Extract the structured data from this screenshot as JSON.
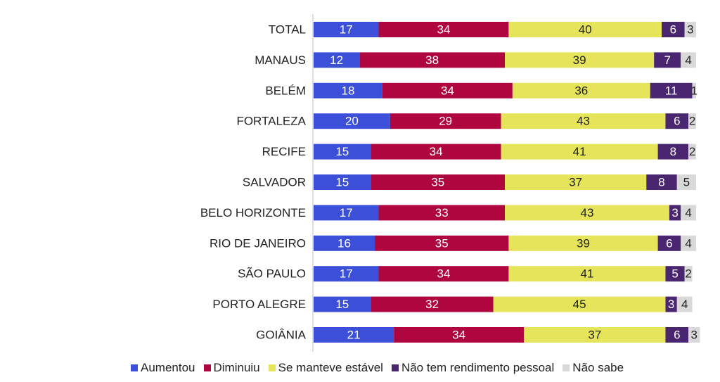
{
  "chart_data": {
    "type": "bar",
    "orientation": "horizontal",
    "stacked": true,
    "grid": false,
    "legend_position": "bottom",
    "xlim": [
      0,
      100
    ],
    "categories": [
      "TOTAL",
      "MANAUS",
      "BELÉM",
      "FORTALEZA",
      "RECIFE",
      "SALVADOR",
      "BELO HORIZONTE",
      "RIO DE JANEIRO",
      "SÃO PAULO",
      "PORTO ALEGRE",
      "GOIÂNIA"
    ],
    "series": [
      {
        "name": "Aumentou",
        "color": "#3b4fd8",
        "label_color": "#ffffff",
        "values": [
          17,
          12,
          18,
          20,
          15,
          15,
          17,
          16,
          17,
          15,
          21
        ]
      },
      {
        "name": "Diminuiu",
        "color": "#b0063f",
        "label_color": "#ffffff",
        "values": [
          34,
          38,
          34,
          29,
          34,
          35,
          33,
          35,
          34,
          32,
          34
        ]
      },
      {
        "name": "Se manteve estável",
        "color": "#e6e45a",
        "label_color": "#222222",
        "values": [
          40,
          39,
          36,
          43,
          41,
          37,
          43,
          39,
          41,
          45,
          37
        ]
      },
      {
        "name": "Não tem rendimento pessoal",
        "color": "#4a2670",
        "label_color": "#ffffff",
        "values": [
          6,
          7,
          11,
          6,
          8,
          8,
          3,
          6,
          5,
          3,
          6
        ]
      },
      {
        "name": "Não sabe",
        "color": "#d9d9d9",
        "label_color": "#222222",
        "values": [
          3,
          4,
          1,
          2,
          2,
          5,
          4,
          4,
          2,
          4,
          3
        ]
      }
    ]
  }
}
